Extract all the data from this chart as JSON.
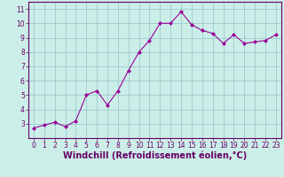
{
  "x": [
    0,
    1,
    2,
    3,
    4,
    5,
    6,
    7,
    8,
    9,
    10,
    11,
    12,
    13,
    14,
    15,
    16,
    17,
    18,
    19,
    20,
    21,
    22,
    23
  ],
  "y": [
    2.7,
    2.9,
    3.1,
    2.8,
    3.2,
    5.0,
    5.3,
    4.3,
    5.3,
    6.7,
    8.0,
    8.8,
    10.0,
    10.0,
    10.8,
    9.9,
    9.5,
    9.3,
    8.6,
    9.2,
    8.6,
    8.7,
    8.8,
    9.2
  ],
  "line_color": "#990099",
  "marker": "D",
  "marker_size": 2.0,
  "bg_color": "#cceee8",
  "grid_color": "#99cccc",
  "xlabel": "Windchill (Refroidissement éolien,°C)",
  "xlim": [
    -0.5,
    23.5
  ],
  "ylim": [
    2.0,
    11.5
  ],
  "yticks": [
    3,
    4,
    5,
    6,
    7,
    8,
    9,
    10,
    11
  ],
  "xticks": [
    0,
    1,
    2,
    3,
    4,
    5,
    6,
    7,
    8,
    9,
    10,
    11,
    12,
    13,
    14,
    15,
    16,
    17,
    18,
    19,
    20,
    21,
    22,
    23
  ],
  "tick_label_size": 5.5,
  "xlabel_size": 7.0,
  "spine_color": "#660066",
  "line_width": 0.8
}
